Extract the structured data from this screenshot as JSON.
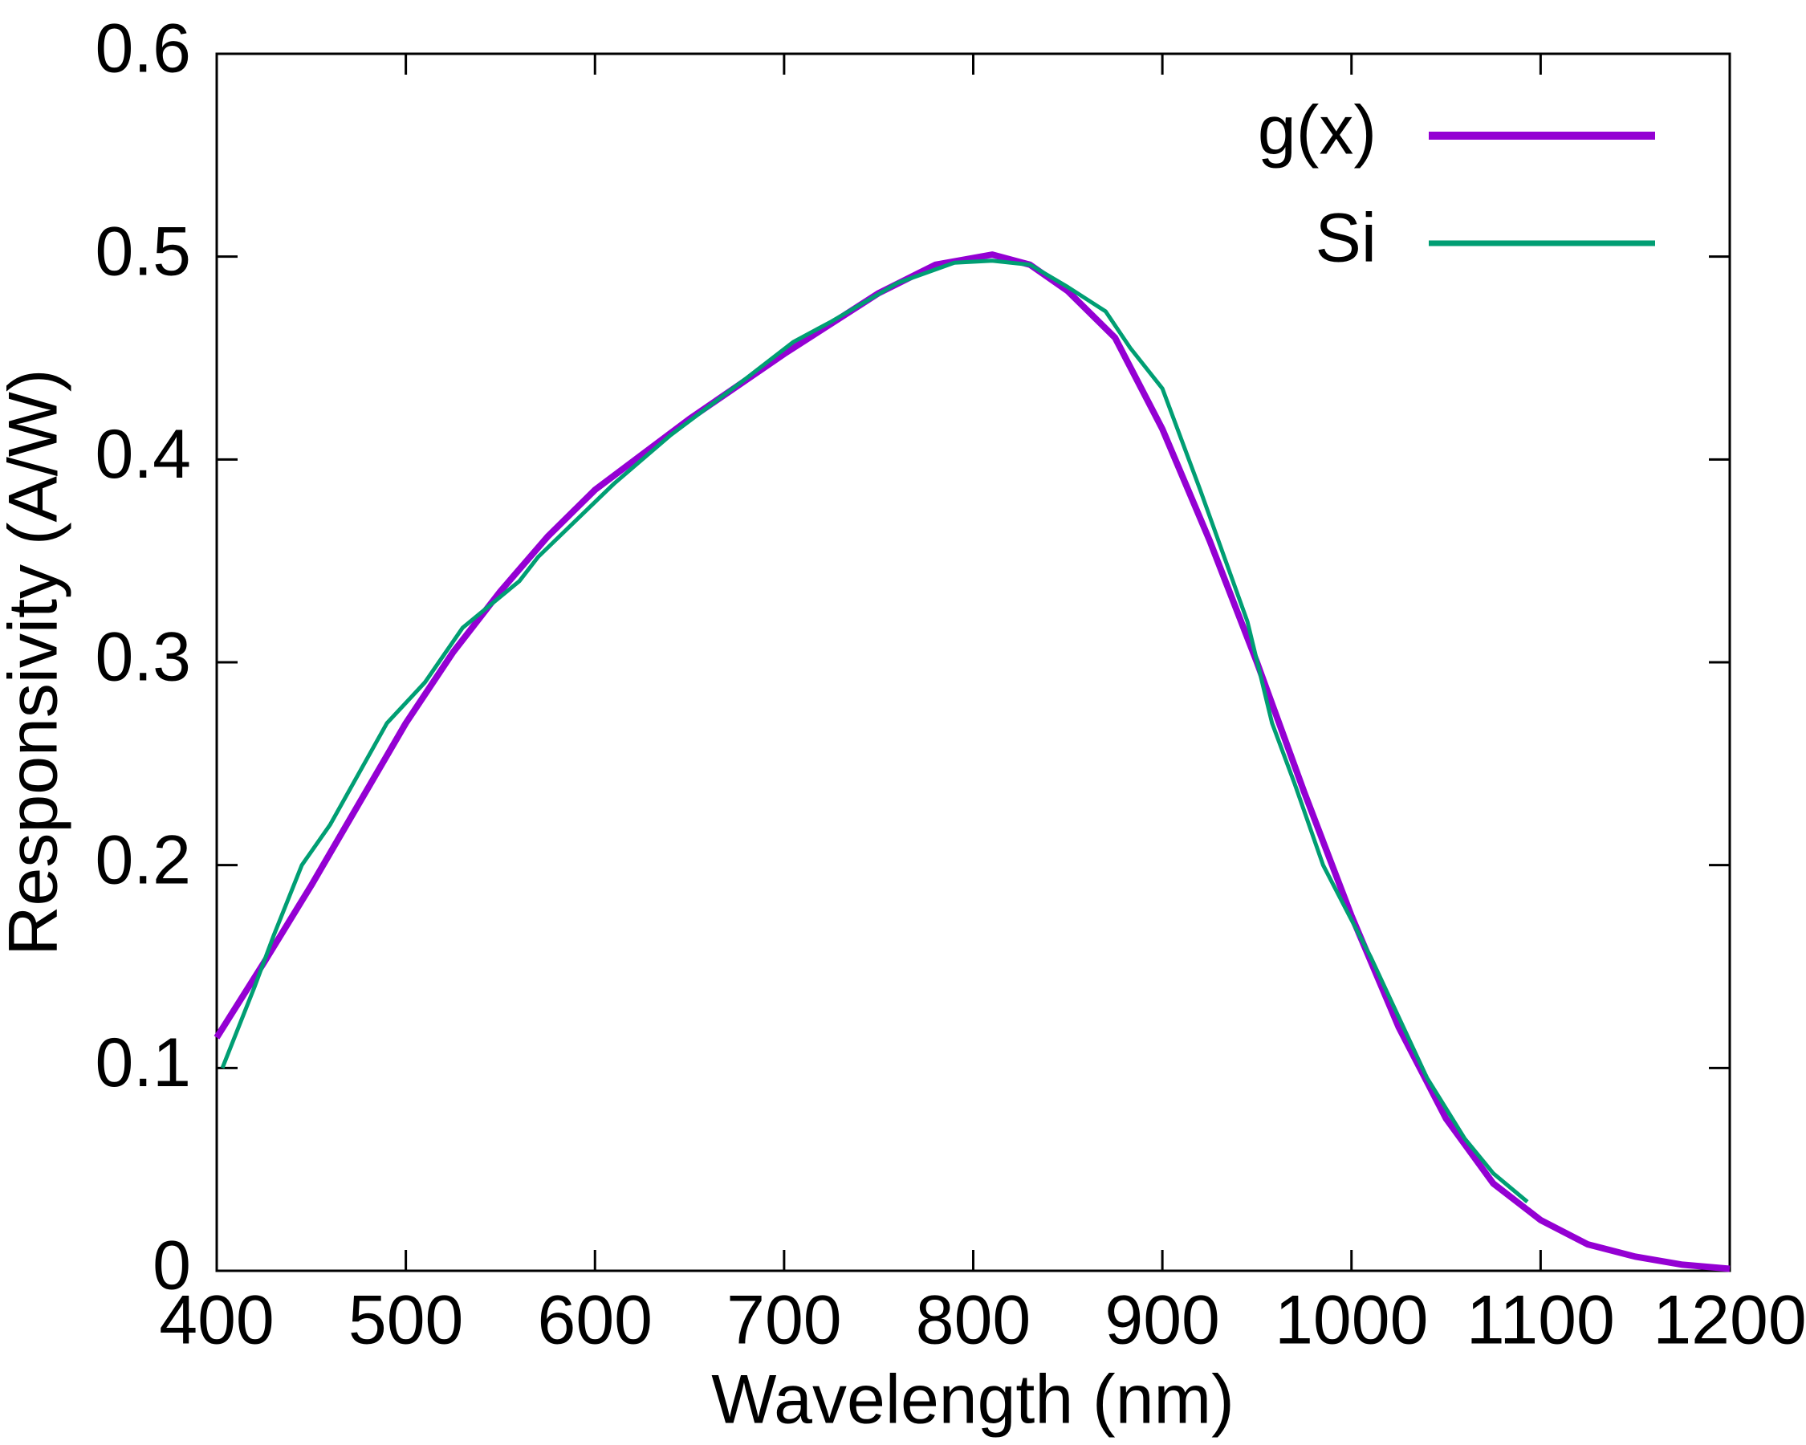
{
  "chart_data": {
    "type": "line",
    "x_label": "Wavelength (nm)",
    "y_label": "Responsivity (A/W)",
    "xlim": [
      400,
      1200
    ],
    "xticks": [
      400,
      500,
      600,
      700,
      800,
      900,
      1000,
      1100,
      1200
    ],
    "ylim": [
      0,
      0.6
    ],
    "yticks": [
      0,
      0.1,
      0.2,
      0.3,
      0.4,
      0.5,
      0.6
    ],
    "grid": false,
    "legend": "top-right",
    "series": [
      {
        "name": "g(x)",
        "color": "#9400d3",
        "width": 8,
        "x": [
          400,
          425,
          450,
          475,
          500,
          525,
          550,
          575,
          600,
          650,
          700,
          750,
          780,
          810,
          830,
          850,
          875,
          900,
          925,
          950,
          975,
          1000,
          1025,
          1050,
          1075,
          1100,
          1125,
          1150,
          1175,
          1200
        ],
        "values": [
          0.115,
          0.152,
          0.19,
          0.23,
          0.27,
          0.305,
          0.335,
          0.362,
          0.385,
          0.42,
          0.452,
          0.482,
          0.496,
          0.501,
          0.496,
          0.483,
          0.46,
          0.415,
          0.36,
          0.3,
          0.236,
          0.175,
          0.12,
          0.075,
          0.043,
          0.025,
          0.013,
          0.007,
          0.003,
          0.001
        ]
      },
      {
        "name": "Si",
        "color": "#009e73",
        "width": 5,
        "x": [
          403,
          420,
          430,
          445,
          460,
          490,
          510,
          530,
          560,
          570,
          610,
          640,
          680,
          705,
          725,
          760,
          790,
          810,
          830,
          850,
          870,
          883,
          900,
          920,
          945,
          958,
          970,
          985,
          1010,
          1040,
          1060,
          1075,
          1093
        ],
        "values": [
          0.1,
          0.14,
          0.165,
          0.2,
          0.22,
          0.27,
          0.29,
          0.317,
          0.34,
          0.352,
          0.388,
          0.412,
          0.44,
          0.458,
          0.468,
          0.487,
          0.497,
          0.498,
          0.496,
          0.485,
          0.473,
          0.455,
          0.435,
          0.385,
          0.32,
          0.27,
          0.24,
          0.2,
          0.155,
          0.095,
          0.065,
          0.048,
          0.034
        ]
      }
    ]
  }
}
